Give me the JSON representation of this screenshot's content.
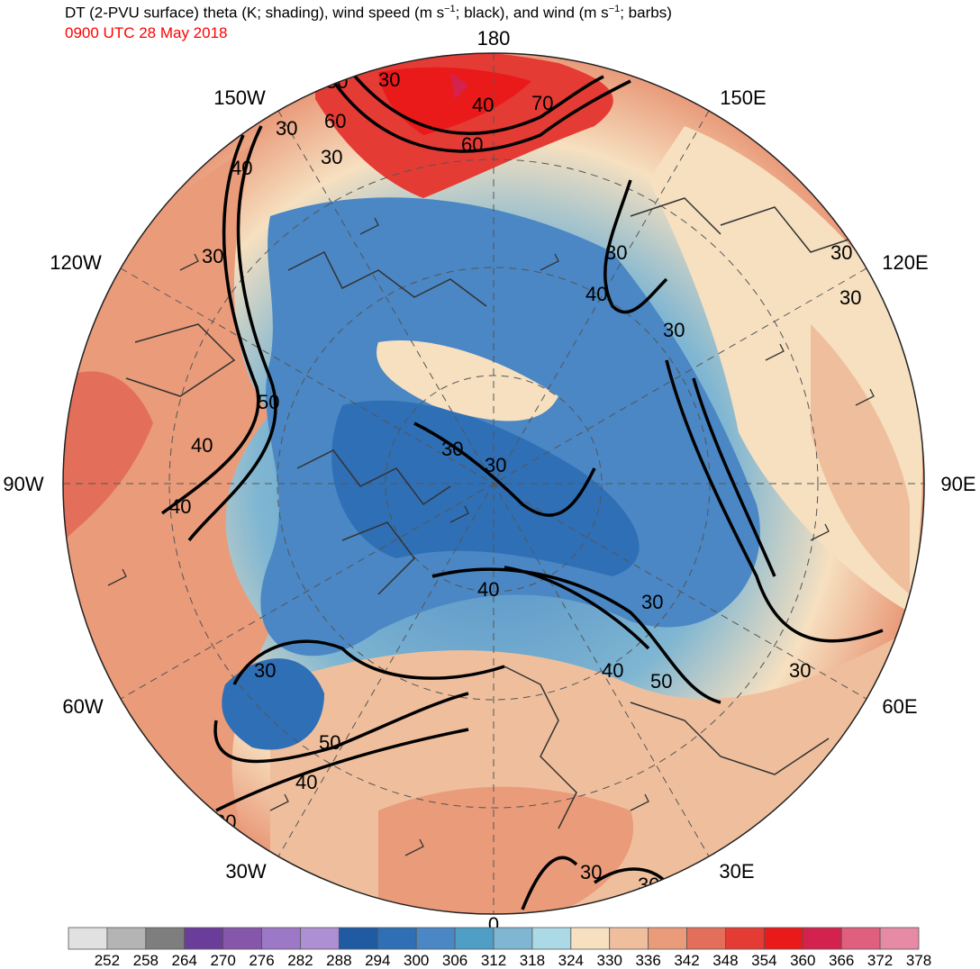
{
  "title": {
    "line1_a": "DT (2-PVU surface) theta (K; shading), wind speed (m s",
    "line1_b": "; black), and wind (m s",
    "line1_c": "; barbs)",
    "superscript": "−1",
    "valid_time": "0900 UTC 28 May 2018"
  },
  "longitude_labels": [
    {
      "key": "n",
      "text": "180"
    },
    {
      "key": "ne1",
      "text": "150E"
    },
    {
      "key": "ne2",
      "text": "120E"
    },
    {
      "key": "e",
      "text": "90E"
    },
    {
      "key": "se1",
      "text": "60E"
    },
    {
      "key": "se2",
      "text": "30E"
    },
    {
      "key": "s",
      "text": "0"
    },
    {
      "key": "sw2",
      "text": "30W"
    },
    {
      "key": "sw1",
      "text": "60W"
    },
    {
      "key": "w",
      "text": "90W"
    },
    {
      "key": "nw2",
      "text": "120W"
    },
    {
      "key": "nw1",
      "text": "150W"
    }
  ],
  "contour_labels": [
    "50",
    "30",
    "40",
    "70",
    "60",
    "60",
    "30",
    "30",
    "40",
    "30",
    "30",
    "40",
    "30",
    "30",
    "30",
    "50",
    "40",
    "40",
    "30",
    "30",
    "40",
    "30",
    "50",
    "30",
    "40",
    "50",
    "40",
    "30",
    "30",
    "30",
    "30"
  ],
  "colorbar": {
    "units": "K",
    "labels": [
      "252",
      "258",
      "264",
      "270",
      "276",
      "282",
      "288",
      "294",
      "300",
      "306",
      "312",
      "318",
      "324",
      "330",
      "336",
      "342",
      "348",
      "354",
      "360",
      "366",
      "372",
      "378"
    ],
    "colors": [
      "#e1e1e1",
      "#b4b4b4",
      "#7e7e7e",
      "#6a3d9a",
      "#8556aa",
      "#9d78c6",
      "#ad8fd4",
      "#1f5aa3",
      "#2f6fb5",
      "#4a87c4",
      "#4f9ec6",
      "#7fb6d2",
      "#acd9e6",
      "#f6e0c0",
      "#efbf9d",
      "#e99b7a",
      "#e36f5a",
      "#e53b35",
      "#ea1a1a",
      "#d4224e",
      "#e05e7e",
      "#e68aa6"
    ]
  }
}
